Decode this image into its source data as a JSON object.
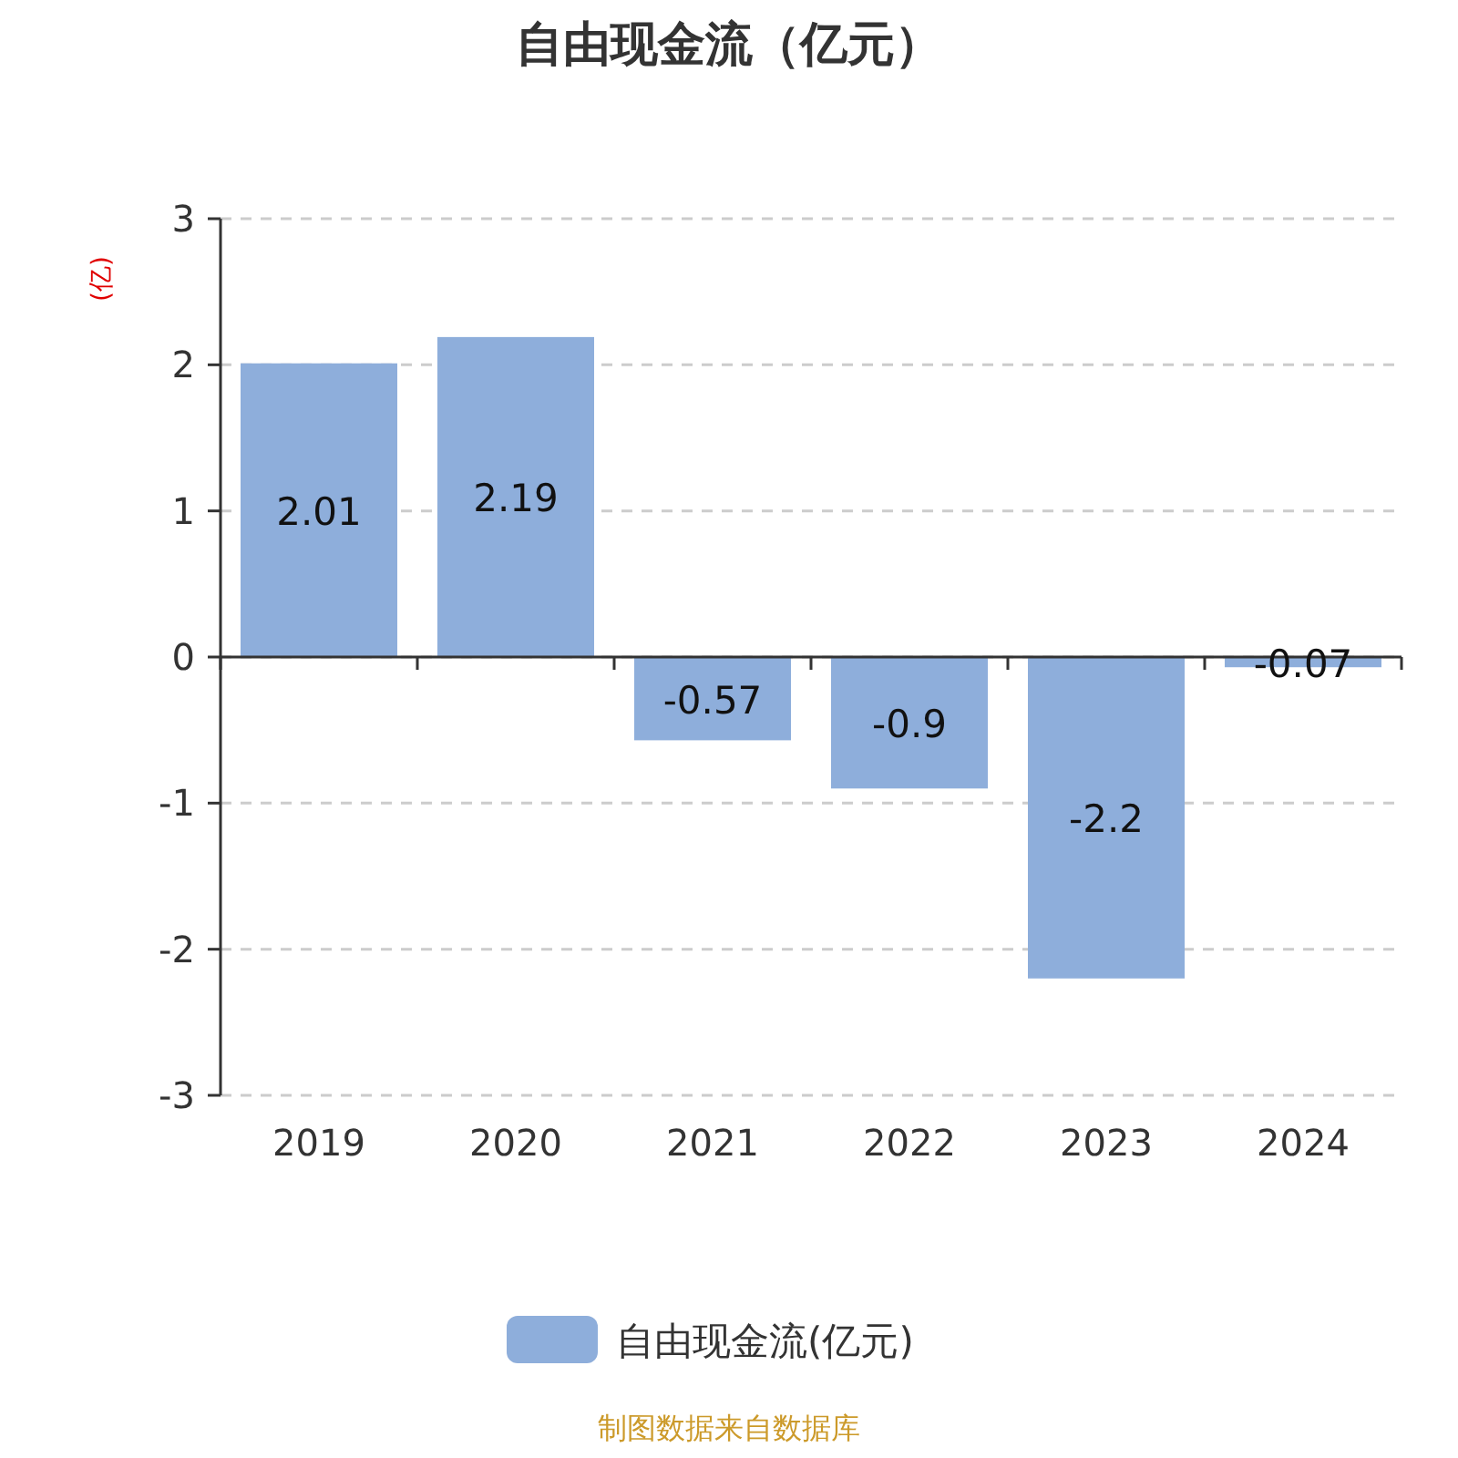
{
  "chart_data": {
    "type": "bar",
    "title": "自由现金流（亿元）",
    "ylabel": "(亿)",
    "categories": [
      "2019",
      "2020",
      "2021",
      "2022",
      "2023",
      "2024"
    ],
    "series": [
      {
        "name": "自由现金流(亿元)",
        "color": "#8eaedb",
        "values": [
          2.01,
          2.19,
          -0.57,
          -0.9,
          -2.2,
          -0.07
        ]
      }
    ],
    "ylim": [
      -3,
      3
    ],
    "yticks": [
      -3,
      -2,
      -1,
      0,
      1,
      2,
      3
    ],
    "grid": "y",
    "legend": "bottom",
    "data_labels": true,
    "annotations": [
      "制图数据来自数据库"
    ]
  }
}
